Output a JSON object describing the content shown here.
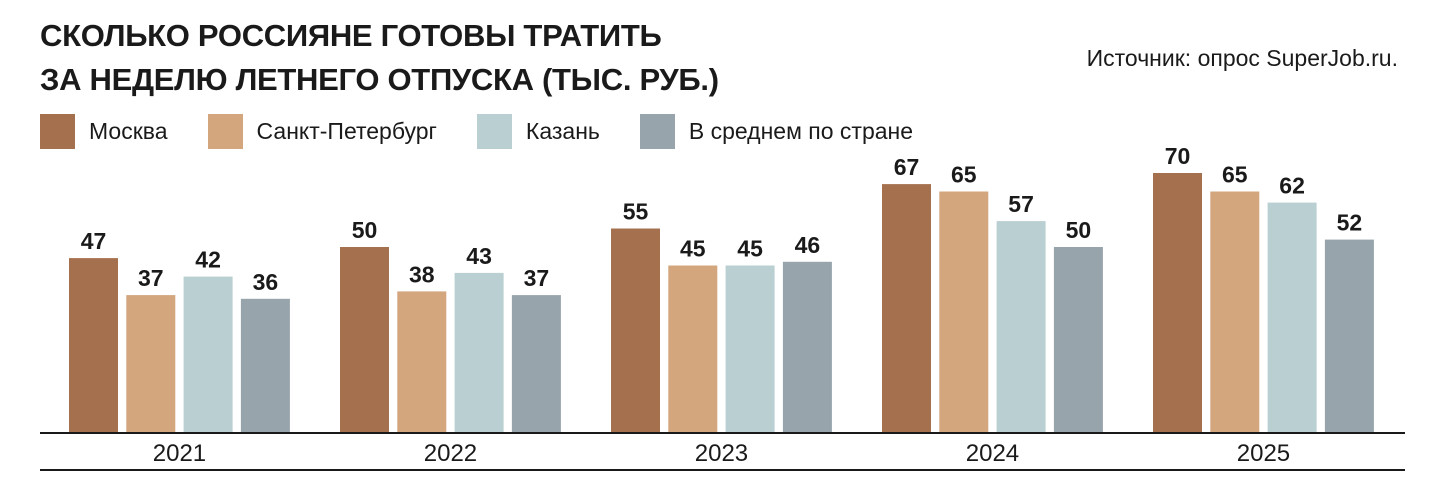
{
  "title_lines": [
    "СКОЛЬКО РОССИЯНЕ ГОТОВЫ ТРАТИТЬ",
    "ЗА НЕДЕЛЮ ЛЕТНЕГО ОТПУСКА (ТЫС. РУБ.)"
  ],
  "source": "Источник: опрос SuperJob.ru.",
  "colors": {
    "moscow": "#a5704d",
    "spb": "#d3a67e",
    "kazan": "#b9cfd2",
    "average": "#97a4ab"
  },
  "chart_data": {
    "type": "bar",
    "title": "СКОЛЬКО РОССИЯНЕ ГОТОВЫ ТРАТИТЬ ЗА НЕДЕЛЮ ЛЕТНЕГО ОТПУСКА (ТЫС. РУБ.)",
    "categories": [
      "2021",
      "2022",
      "2023",
      "2024",
      "2025"
    ],
    "series": [
      {
        "name": "Москва",
        "color": "#a5704d",
        "values": [
          47,
          50,
          55,
          67,
          70
        ]
      },
      {
        "name": "Санкт-Петербург",
        "color": "#d3a67e",
        "values": [
          37,
          38,
          45,
          65,
          65
        ]
      },
      {
        "name": "Казань",
        "color": "#b9cfd2",
        "values": [
          42,
          43,
          45,
          57,
          62
        ]
      },
      {
        "name": "В среднем по стране",
        "color": "#97a4ab",
        "values": [
          36,
          37,
          46,
          50,
          52
        ]
      }
    ],
    "xlabel": "",
    "ylabel": "",
    "ylim": [
      0,
      70
    ],
    "grid": false,
    "legend": "top-left",
    "data_labels": true
  }
}
